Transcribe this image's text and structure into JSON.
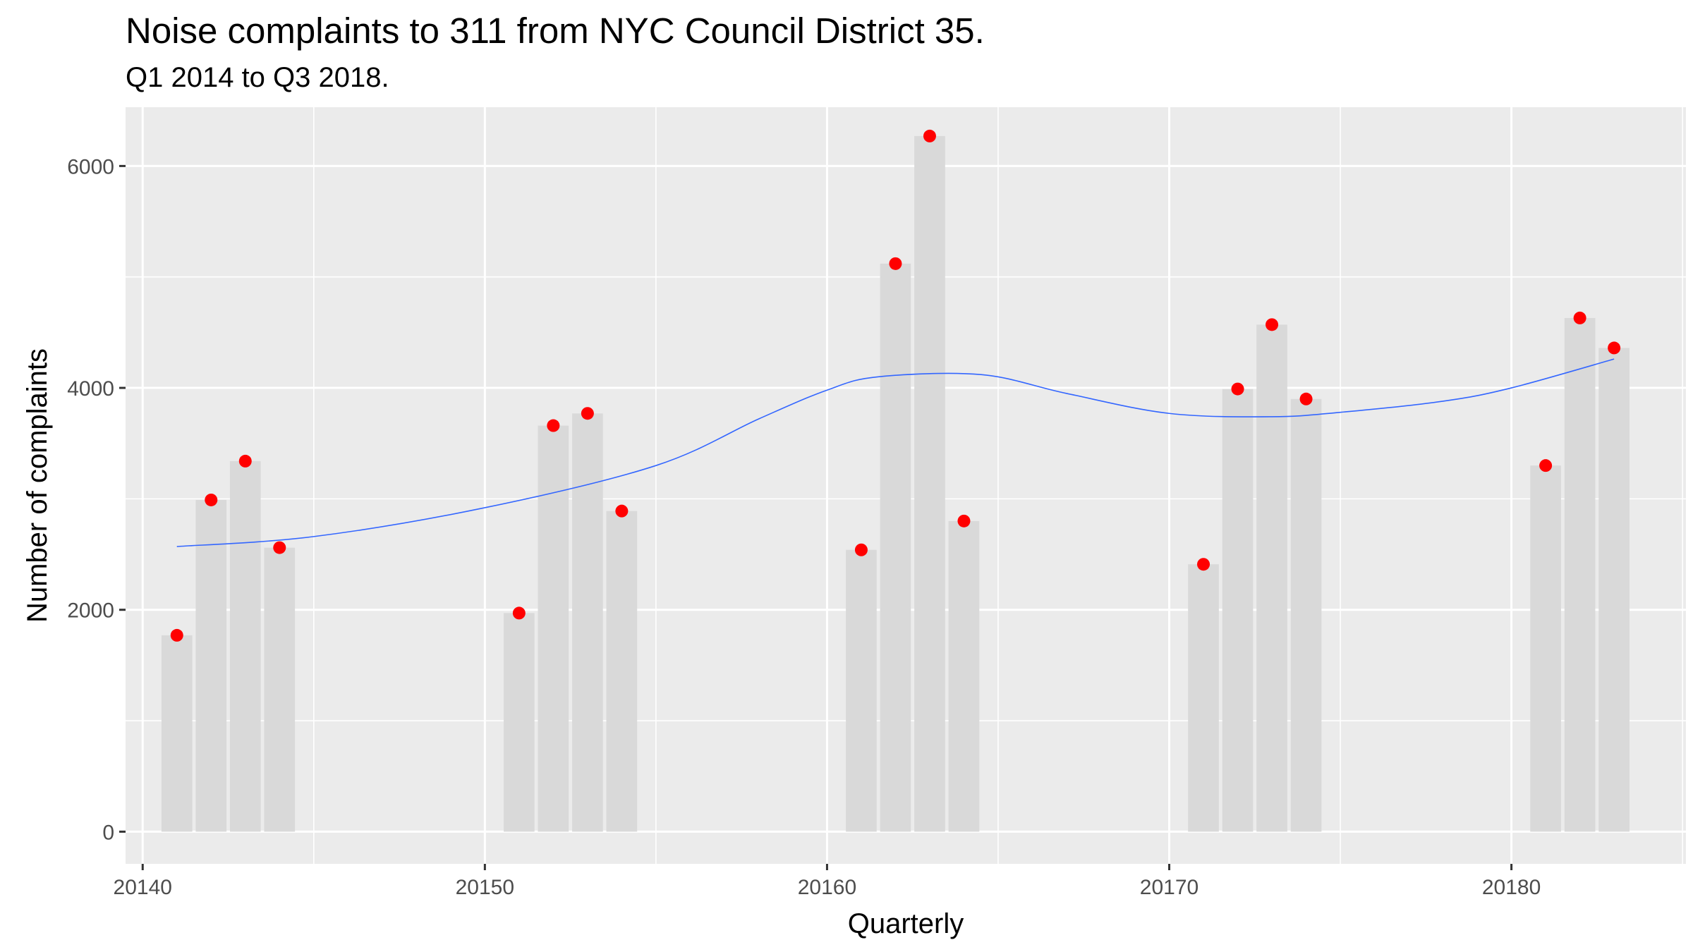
{
  "chart_data": {
    "type": "bar",
    "title": "Noise complaints to 311 from NYC Council District 35.",
    "subtitle": "Q1 2014 to Q3 2018.",
    "xlabel": "Quarterly",
    "ylabel": "Number of complaints",
    "xlim": [
      20139.5,
      20185.1
    ],
    "ylim": [
      -290,
      6530
    ],
    "x_ticks": [
      20140,
      20150,
      20160,
      20170,
      20180
    ],
    "x_tick_labels": [
      "20140",
      "20150",
      "20160",
      "20170",
      "20180"
    ],
    "y_ticks": [
      0,
      2000,
      4000,
      6000
    ],
    "y_tick_labels": [
      "0",
      "2000",
      "4000",
      "6000"
    ],
    "grid": true,
    "bar_color": "#d9d9d9",
    "point_color": "#ff0000",
    "smooth_color": "#3366ff",
    "panel_color": "#ebebeb",
    "x": [
      20141,
      20142,
      20143,
      20144,
      20151,
      20152,
      20153,
      20154,
      20161,
      20162,
      20163,
      20164,
      20171,
      20172,
      20173,
      20174,
      20181,
      20182,
      20183
    ],
    "values": [
      1770,
      2990,
      3340,
      2560,
      1970,
      3660,
      3770,
      2890,
      2540,
      5120,
      6270,
      2800,
      2410,
      3990,
      4570,
      3900,
      3300,
      4630,
      4360
    ],
    "smooth": {
      "x": [
        20141,
        20145,
        20150,
        20155,
        20158,
        20160,
        20161.5,
        20164.5,
        20167,
        20170,
        20173,
        20175,
        20178,
        20180,
        20183
      ],
      "y": [
        2570,
        2660,
        2920,
        3300,
        3720,
        3980,
        4100,
        4120,
        3950,
        3770,
        3740,
        3780,
        3880,
        4000,
        4260
      ]
    }
  }
}
